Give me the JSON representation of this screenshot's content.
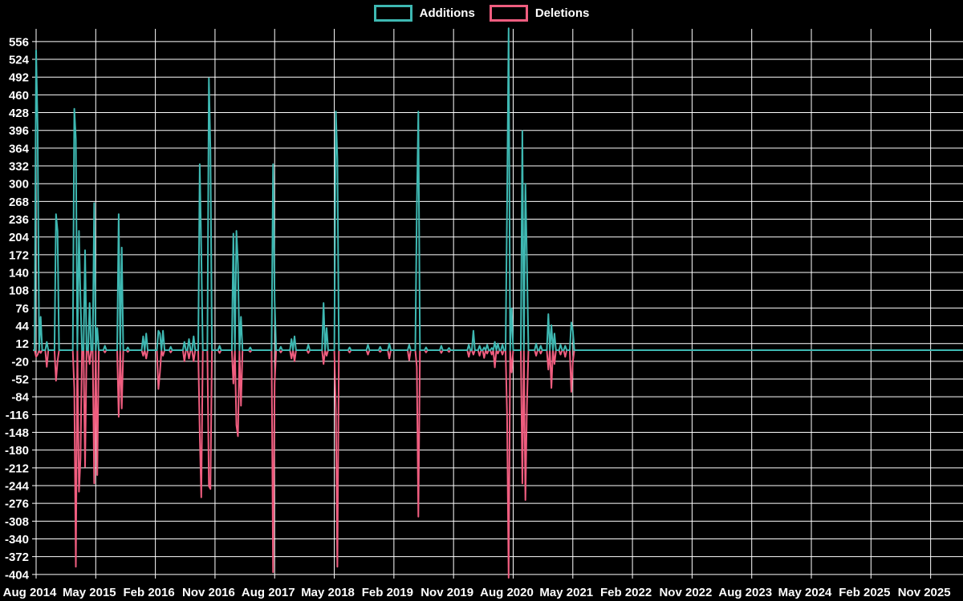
{
  "legend": {
    "additions_label": "Additions",
    "deletions_label": "Deletions"
  },
  "colors": {
    "background": "#000000",
    "grid": "#ffffff",
    "text": "#ffffff",
    "additions": "#3eb8b2",
    "deletions": "#ef5d7f"
  },
  "chart_data": {
    "type": "line",
    "title": "",
    "xlabel": "",
    "ylabel": "",
    "grid": "on",
    "legend_position": "top-center",
    "series_names": [
      "Additions",
      "Deletions"
    ],
    "y_ticks": [
      556,
      524,
      492,
      460,
      428,
      396,
      364,
      332,
      300,
      268,
      236,
      204,
      172,
      140,
      108,
      76,
      44,
      12,
      -20,
      -52,
      -84,
      -116,
      -148,
      -180,
      -212,
      -244,
      -276,
      -308,
      -340,
      -372,
      -404
    ],
    "ylim": [
      -404,
      556
    ],
    "x_tick_labels": [
      "Aug 2014",
      "May 2015",
      "Feb 2016",
      "Nov 2016",
      "Aug 2017",
      "May 2018",
      "Feb 2019",
      "Nov 2019",
      "Aug 2020",
      "May 2021",
      "Feb 2022",
      "Nov 2022",
      "Aug 2023",
      "May 2024",
      "Feb 2025",
      "Nov 2025"
    ],
    "x_unit": "week",
    "weeks_per_x_gridline": 39,
    "x_start_label": "Aug 2014",
    "x_total_weeks": 606,
    "baseline": 0,
    "note": "spikes = sparse weekly data points [week_index_from_Aug_2014, additions, deletions]; all unlisted weeks are 0,0; data ends ~Jun 2021 then flat at 0",
    "spikes": [
      [
        0,
        540,
        -12
      ],
      [
        1,
        400,
        -8
      ],
      [
        3,
        60,
        -5
      ],
      [
        7,
        15,
        -30
      ],
      [
        13,
        245,
        -55
      ],
      [
        14,
        215,
        -20
      ],
      [
        25,
        435,
        -70
      ],
      [
        26,
        380,
        -390
      ],
      [
        28,
        215,
        -255
      ],
      [
        29,
        90,
        -195
      ],
      [
        32,
        180,
        -210
      ],
      [
        35,
        85,
        -25
      ],
      [
        38,
        265,
        -240
      ],
      [
        40,
        40,
        -225
      ],
      [
        45,
        8,
        -4
      ],
      [
        54,
        245,
        -120
      ],
      [
        56,
        185,
        -105
      ],
      [
        60,
        5,
        -3
      ],
      [
        70,
        25,
        -10
      ],
      [
        72,
        30,
        -15
      ],
      [
        80,
        35,
        -70
      ],
      [
        81,
        30,
        -40
      ],
      [
        83,
        35,
        -10
      ],
      [
        88,
        6,
        -4
      ],
      [
        97,
        15,
        -20
      ],
      [
        100,
        20,
        -15
      ],
      [
        103,
        25,
        -20
      ],
      [
        107,
        335,
        -150
      ],
      [
        108,
        180,
        -265
      ],
      [
        113,
        490,
        -245
      ],
      [
        114,
        360,
        -250
      ],
      [
        120,
        8,
        -5
      ],
      [
        129,
        210,
        -60
      ],
      [
        131,
        215,
        -135
      ],
      [
        132,
        155,
        -155
      ],
      [
        134,
        60,
        -100
      ],
      [
        140,
        5,
        -3
      ],
      [
        155,
        335,
        -400
      ],
      [
        156,
        90,
        -60
      ],
      [
        160,
        6,
        -4
      ],
      [
        167,
        20,
        -15
      ],
      [
        169,
        25,
        -20
      ],
      [
        178,
        10,
        -5
      ],
      [
        188,
        85,
        -25
      ],
      [
        190,
        40,
        -10
      ],
      [
        196,
        430,
        -110
      ],
      [
        197,
        345,
        -390
      ],
      [
        205,
        5,
        -4
      ],
      [
        217,
        10,
        -8
      ],
      [
        225,
        6,
        -3
      ],
      [
        231,
        12,
        -15
      ],
      [
        244,
        10,
        -18
      ],
      [
        249,
        255,
        -30
      ],
      [
        250,
        430,
        -300
      ],
      [
        255,
        5,
        -4
      ],
      [
        265,
        8,
        -5
      ],
      [
        270,
        4,
        -3
      ],
      [
        283,
        10,
        -12
      ],
      [
        286,
        35,
        -8
      ],
      [
        290,
        8,
        -10
      ],
      [
        293,
        5,
        -14
      ],
      [
        295,
        10,
        -6
      ],
      [
        298,
        4,
        -8
      ],
      [
        300,
        15,
        -31
      ],
      [
        302,
        12,
        -6
      ],
      [
        305,
        10,
        -8
      ],
      [
        308,
        265,
        -120
      ],
      [
        309,
        580,
        -410
      ],
      [
        311,
        75,
        -40
      ],
      [
        318,
        395,
        -240
      ],
      [
        320,
        300,
        -270
      ],
      [
        321,
        160,
        -100
      ],
      [
        327,
        12,
        -10
      ],
      [
        330,
        8,
        -6
      ],
      [
        335,
        65,
        -35
      ],
      [
        337,
        45,
        -68
      ],
      [
        339,
        30,
        -25
      ],
      [
        343,
        10,
        -8
      ],
      [
        346,
        8,
        -12
      ],
      [
        350,
        50,
        -75
      ],
      [
        351,
        35,
        -20
      ]
    ]
  }
}
